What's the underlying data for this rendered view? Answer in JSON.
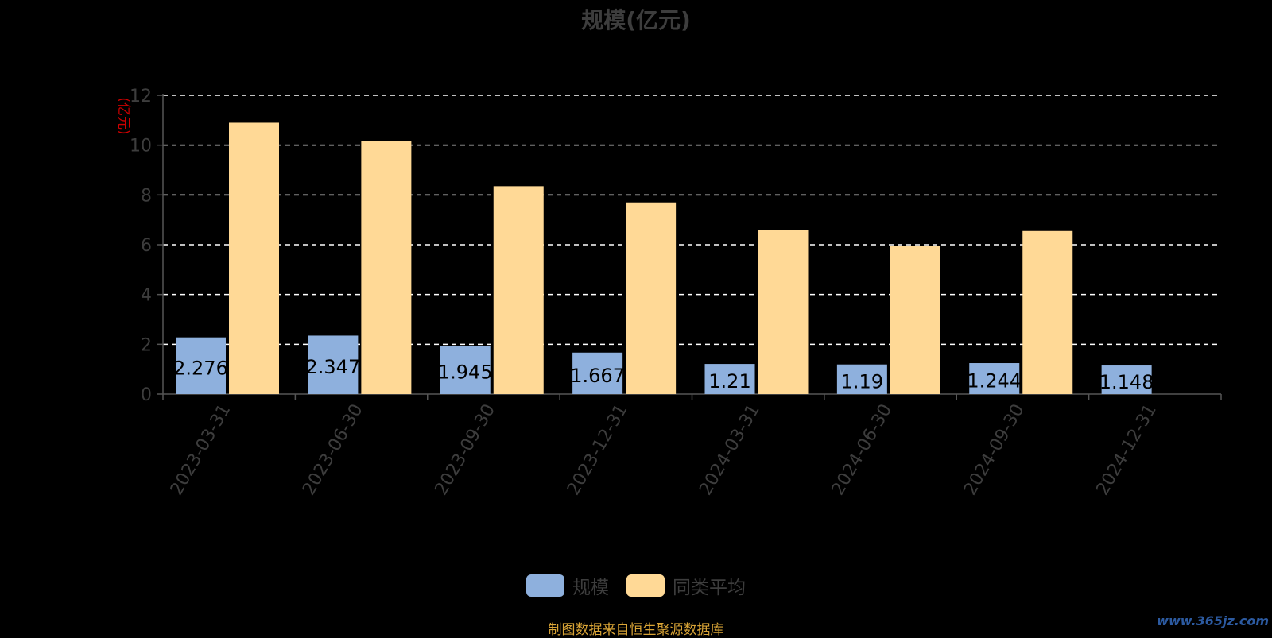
{
  "title": "规模(亿元)",
  "source_note": "制图数据来自恒生聚源数据库",
  "watermark": "www.365jz.com",
  "colors": {
    "background": "#000000",
    "series_scale": "#8eb0dd",
    "series_avg": "#ffd996",
    "axis": "#555555",
    "grid": "#ffffff",
    "unit_label": "#cc0000",
    "text_muted": "#3d3d3d",
    "source_text": "#d9a436"
  },
  "chart_data": {
    "type": "bar",
    "title": "规模(亿元)",
    "ylabel": "(亿元)",
    "ylim": [
      0,
      12
    ],
    "yticks": [
      0,
      2,
      4,
      6,
      8,
      10,
      12
    ],
    "grid": true,
    "legend_position": "bottom",
    "categories": [
      "2023-03-31",
      "2023-06-30",
      "2023-09-30",
      "2023-12-31",
      "2024-03-31",
      "2024-06-30",
      "2024-09-30",
      "2024-12-31"
    ],
    "series": [
      {
        "name": "规模",
        "values": [
          2.276,
          2.347,
          1.945,
          1.667,
          1.21,
          1.19,
          1.244,
          1.148
        ],
        "data_labels": [
          "2.276",
          "2.347",
          "1.945",
          "1.667",
          "1.21",
          "1.19",
          "1.244",
          "1.148"
        ]
      },
      {
        "name": "同类平均",
        "values": [
          10.9,
          10.15,
          8.35,
          7.7,
          6.6,
          5.95,
          6.55,
          null
        ]
      }
    ]
  }
}
